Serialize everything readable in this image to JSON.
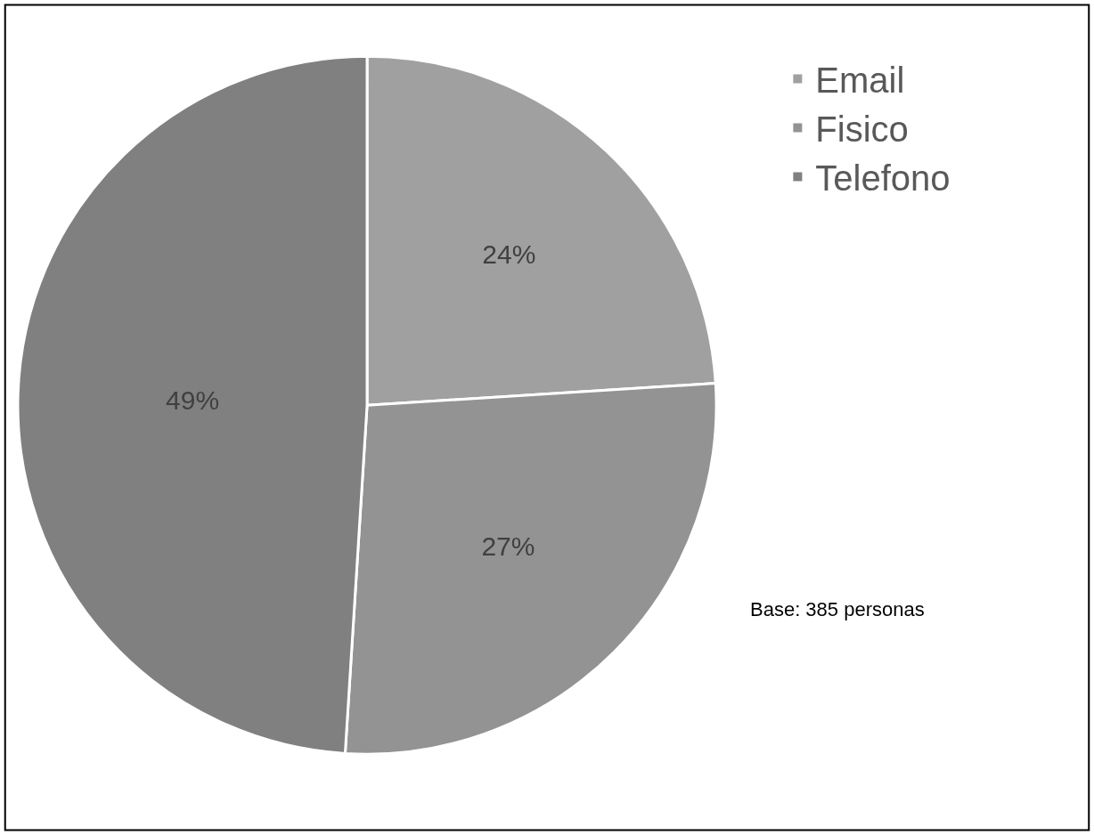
{
  "chart_data": {
    "type": "pie",
    "categories": [
      "Email",
      "Fisico",
      "Telefono"
    ],
    "values": [
      24,
      27,
      49
    ],
    "colors": [
      "#a0a0a0",
      "#939393",
      "#808080"
    ],
    "value_labels": [
      "24%",
      "27%",
      "49%"
    ],
    "legend": "top right",
    "annotations": [
      "Base: 385 personas"
    ]
  }
}
